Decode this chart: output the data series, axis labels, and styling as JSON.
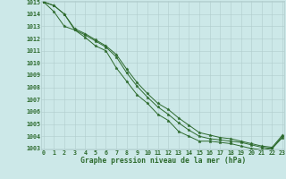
{
  "x": [
    0,
    1,
    2,
    3,
    4,
    5,
    6,
    7,
    8,
    9,
    10,
    11,
    12,
    13,
    14,
    15,
    16,
    17,
    18,
    19,
    20,
    21,
    22,
    23
  ],
  "line1": [
    1015.0,
    1014.7,
    1014.0,
    1012.7,
    1012.3,
    1011.8,
    1011.3,
    1010.5,
    1009.2,
    1008.1,
    1007.2,
    1006.4,
    1005.8,
    1005.1,
    1004.5,
    1004.0,
    1003.8,
    1003.7,
    1003.6,
    1003.5,
    1003.3,
    1003.1,
    1003.0,
    1004.0
  ],
  "line2": [
    1015.0,
    1014.7,
    1014.0,
    1012.8,
    1012.4,
    1011.9,
    1011.4,
    1010.7,
    1009.5,
    1008.4,
    1007.5,
    1006.7,
    1006.2,
    1005.5,
    1004.9,
    1004.3,
    1004.1,
    1003.9,
    1003.8,
    1003.6,
    1003.4,
    1003.2,
    1003.1,
    1004.1
  ],
  "line3": [
    1015.0,
    1014.2,
    1013.0,
    1012.7,
    1012.1,
    1011.4,
    1011.0,
    1009.6,
    1008.5,
    1007.4,
    1006.7,
    1005.8,
    1005.3,
    1004.4,
    1004.0,
    1003.6,
    1003.6,
    1003.5,
    1003.4,
    1003.2,
    1003.0,
    1002.9,
    1003.0,
    1003.9
  ],
  "line_color": "#2d6a2d",
  "bg_color": "#cce8e8",
  "grid_color": "#b0cccc",
  "label_color": "#2d6a2d",
  "xlabel": "Graphe pression niveau de la mer (hPa)",
  "ylim": [
    1003,
    1015
  ],
  "xlim": [
    0,
    23
  ],
  "yticks": [
    1003,
    1004,
    1005,
    1006,
    1007,
    1008,
    1009,
    1010,
    1011,
    1012,
    1013,
    1014,
    1015
  ],
  "xticks": [
    0,
    1,
    2,
    3,
    4,
    5,
    6,
    7,
    8,
    9,
    10,
    11,
    12,
    13,
    14,
    15,
    16,
    17,
    18,
    19,
    20,
    21,
    22,
    23
  ],
  "tick_fontsize": 4.8,
  "title_fontsize": 5.8,
  "marker": "*",
  "markersize": 2.5,
  "linewidth": 0.7
}
